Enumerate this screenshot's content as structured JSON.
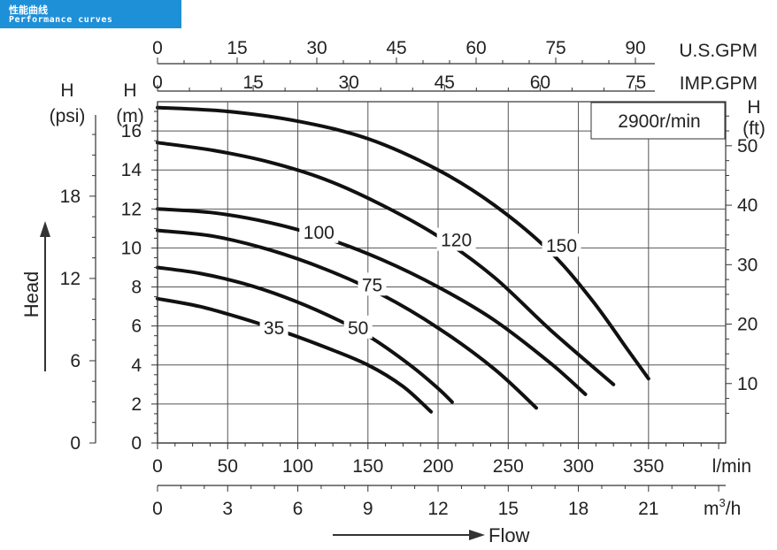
{
  "header": {
    "title_cn": "性能曲线",
    "title_en": "Performance curves"
  },
  "chart_data": {
    "type": "line",
    "speed_label": "2900r/min",
    "x_axis": {
      "label": "l/min",
      "ticks": [
        "0",
        "50",
        "100",
        "150",
        "200",
        "250",
        "300",
        "350"
      ],
      "range": [
        0,
        405
      ]
    },
    "x_axis_m3h": {
      "label": "m³/h",
      "unit_base": "m",
      "unit_sup": "3",
      "unit_tail": "/h",
      "ticks": [
        "0",
        "3",
        "6",
        "9",
        "12",
        "15",
        "18",
        "21"
      ]
    },
    "x_axis_usgpm": {
      "label": "U.S.GPM",
      "ticks": [
        "0",
        "15",
        "30",
        "45",
        "60",
        "75",
        "90"
      ]
    },
    "x_axis_impgpm": {
      "label": "IMP.GPM",
      "ticks": [
        "0",
        "15",
        "30",
        "45",
        "60",
        "75"
      ]
    },
    "y_axis_m": {
      "label_line1": "H",
      "label_line2": "(m)",
      "ticks": [
        "0",
        "2",
        "4",
        "6",
        "8",
        "10",
        "12",
        "14",
        "16"
      ],
      "range": [
        0,
        17.5
      ]
    },
    "y_axis_psi": {
      "label_line1": "H",
      "label_line2": "(psi)",
      "ticks": [
        "0",
        "6",
        "12",
        "18"
      ]
    },
    "y_axis_ft": {
      "label_line1": "H",
      "label_line2": "(ft)",
      "ticks": [
        "10",
        "20",
        "30",
        "40",
        "50"
      ]
    },
    "left_title": "Head",
    "bottom_title": "Flow",
    "series": [
      {
        "name": "35",
        "label_at": [
          83,
          5.9
        ],
        "points": [
          [
            0,
            7.4
          ],
          [
            30,
            7.0
          ],
          [
            60,
            6.4
          ],
          [
            90,
            5.7
          ],
          [
            120,
            4.9
          ],
          [
            150,
            4.0
          ],
          [
            175,
            2.9
          ],
          [
            195,
            1.6
          ]
        ]
      },
      {
        "name": "50",
        "label_at": [
          143,
          5.9
        ],
        "points": [
          [
            0,
            9.0
          ],
          [
            30,
            8.7
          ],
          [
            60,
            8.2
          ],
          [
            90,
            7.5
          ],
          [
            120,
            6.6
          ],
          [
            150,
            5.5
          ],
          [
            180,
            4.0
          ],
          [
            200,
            2.8
          ],
          [
            210,
            2.1
          ]
        ]
      },
      {
        "name": "75",
        "label_at": [
          153,
          8.1
        ],
        "points": [
          [
            0,
            10.9
          ],
          [
            40,
            10.6
          ],
          [
            80,
            9.9
          ],
          [
            120,
            8.9
          ],
          [
            160,
            7.6
          ],
          [
            200,
            5.9
          ],
          [
            240,
            3.8
          ],
          [
            270,
            1.8
          ]
        ]
      },
      {
        "name": "100",
        "label_at": [
          115,
          10.8
        ],
        "points": [
          [
            0,
            12.0
          ],
          [
            40,
            11.8
          ],
          [
            80,
            11.3
          ],
          [
            120,
            10.5
          ],
          [
            160,
            9.4
          ],
          [
            200,
            8.0
          ],
          [
            240,
            6.3
          ],
          [
            280,
            4.1
          ],
          [
            305,
            2.5
          ]
        ]
      },
      {
        "name": "120",
        "label_at": [
          213,
          10.4
        ],
        "points": [
          [
            0,
            15.4
          ],
          [
            40,
            15.0
          ],
          [
            80,
            14.4
          ],
          [
            120,
            13.5
          ],
          [
            160,
            12.2
          ],
          [
            200,
            10.6
          ],
          [
            240,
            8.5
          ],
          [
            280,
            5.8
          ],
          [
            325,
            3.0
          ]
        ]
      },
      {
        "name": "150",
        "label_at": [
          288,
          10.1
        ],
        "points": [
          [
            0,
            17.2
          ],
          [
            50,
            17.0
          ],
          [
            100,
            16.5
          ],
          [
            150,
            15.6
          ],
          [
            200,
            14.0
          ],
          [
            240,
            12.2
          ],
          [
            280,
            9.8
          ],
          [
            310,
            7.3
          ],
          [
            335,
            4.8
          ],
          [
            350,
            3.3
          ]
        ]
      }
    ]
  }
}
